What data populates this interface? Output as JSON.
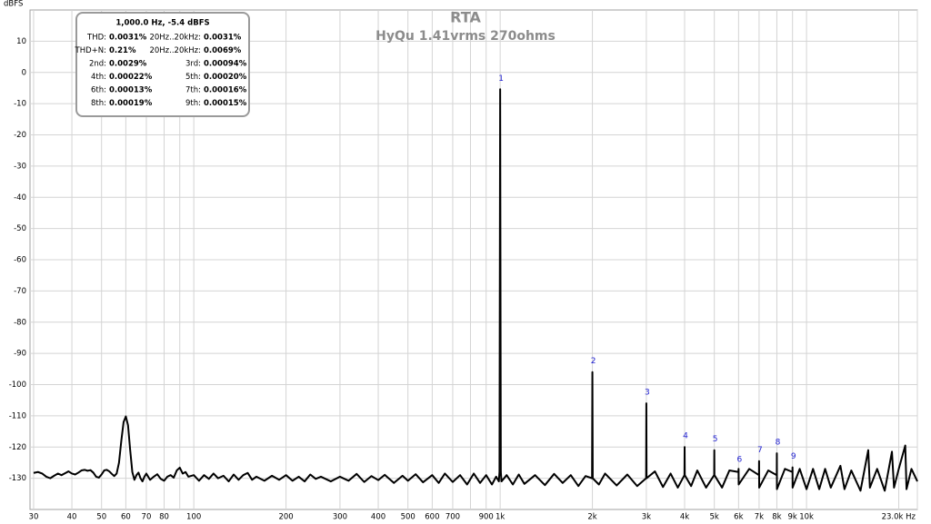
{
  "chart_data": {
    "type": "line",
    "title": "RTA",
    "subtitle": "HyQu 1.41vrms 270ohms",
    "y_label": "dBFS",
    "log_x": true,
    "grid": true,
    "color": "#000000",
    "xlim": [
      29.2,
      23000
    ],
    "ylim": [
      -140,
      20
    ],
    "xticks": [
      30,
      40,
      50,
      60,
      70,
      80,
      100,
      200,
      300,
      400,
      500,
      600,
      700,
      900,
      {
        "value": 1000,
        "label": "1k"
      },
      {
        "value": 2000,
        "label": "2k"
      },
      {
        "value": 3000,
        "label": "3k"
      },
      {
        "value": 4000,
        "label": "4k"
      },
      {
        "value": 5000,
        "label": "5k"
      },
      {
        "value": 6000,
        "label": "6k"
      },
      {
        "value": 7000,
        "label": "7k"
      },
      {
        "value": 8000,
        "label": "8k"
      },
      {
        "value": 9000,
        "label": "9k"
      },
      {
        "value": 10000,
        "label": "10k"
      },
      {
        "value": 23000,
        "label": "23.0k Hz"
      }
    ],
    "xgrid_minor": [
      90,
      800,
      20000
    ],
    "yticks": [
      10,
      0,
      -10,
      -20,
      -30,
      -40,
      -50,
      -60,
      -70,
      -80,
      -90,
      -100,
      -110,
      -120,
      -130
    ],
    "x": [
      30,
      31,
      32,
      33,
      34,
      35,
      36,
      37,
      38,
      39,
      40,
      41,
      42,
      43,
      44,
      45,
      46,
      47,
      48,
      49,
      50,
      51,
      52,
      53,
      54,
      55,
      56,
      57,
      58,
      59,
      60,
      61,
      62,
      63,
      64,
      65,
      66,
      67,
      68,
      69,
      70,
      72,
      74,
      76,
      78,
      80,
      82,
      84,
      86,
      88,
      90,
      92,
      94,
      96,
      100,
      104,
      108,
      112,
      116,
      120,
      125,
      130,
      135,
      140,
      145,
      150,
      155,
      160,
      170,
      180,
      190,
      200,
      210,
      220,
      230,
      240,
      250,
      260,
      280,
      300,
      320,
      340,
      360,
      380,
      400,
      420,
      450,
      480,
      500,
      530,
      560,
      600,
      630,
      660,
      700,
      740,
      780,
      820,
      860,
      900,
      940,
      970,
      990,
      995,
      1000,
      1005,
      1010,
      1050,
      1100,
      1150,
      1200,
      1300,
      1400,
      1500,
      1600,
      1700,
      1800,
      1900,
      1995,
      2000,
      2005,
      2100,
      2200,
      2400,
      2600,
      2800,
      2995,
      3000,
      3005,
      3200,
      3400,
      3600,
      3800,
      3995,
      4000,
      4005,
      4200,
      4400,
      4700,
      4995,
      5000,
      5005,
      5300,
      5600,
      5995,
      6000,
      6005,
      6500,
      6995,
      7000,
      7005,
      7500,
      7995,
      8000,
      8005,
      8500,
      8995,
      9000,
      9005,
      9500,
      10000,
      10500,
      11000,
      11500,
      12000,
      12900,
      13300,
      14000,
      15000,
      15900,
      16100,
      17000,
      18000,
      19000,
      19300,
      20000,
      21000,
      21200,
      22000,
      23000
    ],
    "values": [
      -128.3,
      -128,
      -128.5,
      -129.5,
      -130,
      -129.2,
      -128.5,
      -129,
      -128.4,
      -127.8,
      -128.5,
      -128.8,
      -128.2,
      -127.5,
      -127.3,
      -127.6,
      -127.4,
      -128.2,
      -129.5,
      -129.8,
      -128.8,
      -127.5,
      -127.3,
      -127.8,
      -128.6,
      -129.3,
      -128.5,
      -125,
      -118,
      -112,
      -110.2,
      -113,
      -121,
      -128,
      -130.5,
      -129,
      -128.2,
      -130,
      -131,
      -129.5,
      -128.5,
      -130.5,
      -129.5,
      -128.7,
      -130.2,
      -130.8,
      -129.5,
      -129,
      -129.8,
      -127.5,
      -126.6,
      -128.5,
      -128,
      -129.5,
      -129,
      -130.8,
      -129,
      -130.2,
      -128.5,
      -130,
      -129.2,
      -131,
      -128.8,
      -130.5,
      -129,
      -128.3,
      -130.5,
      -129.5,
      -130.8,
      -129.2,
      -130.5,
      -129,
      -130.8,
      -129.5,
      -131,
      -128.8,
      -130.2,
      -129.5,
      -131,
      -129.5,
      -130.8,
      -128.6,
      -131.2,
      -129.3,
      -130.6,
      -128.9,
      -131.5,
      -129.2,
      -130.8,
      -128.7,
      -131.3,
      -129,
      -131.5,
      -128.5,
      -131.2,
      -129,
      -132,
      -128.5,
      -131.5,
      -129,
      -132,
      -129.5,
      -131,
      -128,
      -5.4,
      -128,
      -131,
      -129,
      -132,
      -128.8,
      -131.8,
      -129,
      -132.2,
      -128.6,
      -131.5,
      -129,
      -132.5,
      -129.3,
      -130,
      -96,
      -130,
      -132,
      -128.5,
      -132.3,
      -128.8,
      -132.5,
      -130,
      -106,
      -130,
      -127.8,
      -132.8,
      -128.5,
      -133,
      -129,
      -120,
      -129,
      -132.5,
      -127.5,
      -133,
      -129,
      -121,
      -129,
      -133,
      -127.5,
      -128,
      -127,
      -132,
      -127,
      -129,
      -124.5,
      -133,
      -127.5,
      -129,
      -122,
      -133.5,
      -127,
      -128,
      -126.5,
      -133,
      -127,
      -133.5,
      -127,
      -133.5,
      -127,
      -133,
      -126,
      -133.5,
      -127.5,
      -134,
      -121,
      -133,
      -127,
      -134,
      -121.5,
      -133,
      -127,
      -119.5,
      -133.5,
      -127,
      -131
    ],
    "markers": [
      {
        "label": "1",
        "x": 1000,
        "y": -2
      },
      {
        "label": "2",
        "x": 2000,
        "y": -92.5
      },
      {
        "label": "3",
        "x": 3000,
        "y": -102.5
      },
      {
        "label": "4",
        "x": 4000,
        "y": -116.5
      },
      {
        "label": "5",
        "x": 5000,
        "y": -117.5
      },
      {
        "label": "6",
        "x": 6000,
        "y": -124
      },
      {
        "label": "7",
        "x": 7000,
        "y": -121
      },
      {
        "label": "8",
        "x": 8000,
        "y": -118.5
      },
      {
        "label": "9",
        "x": 9000,
        "y": -123
      }
    ],
    "info_box": {
      "header": "1,000.0 Hz, -5.4 dBFS",
      "rows": [
        [
          "THD:",
          "0.0031%",
          "20Hz..20kHz:",
          "0.0031%"
        ],
        [
          "THD+N:",
          "0.21%",
          "20Hz..20kHz:",
          "0.0069%"
        ],
        [
          "2nd:",
          "0.0029%",
          "3rd:",
          "0.00094%"
        ],
        [
          "4th:",
          "0.00022%",
          "5th:",
          "0.00020%"
        ],
        [
          "6th:",
          "0.00013%",
          "7th:",
          "0.00016%"
        ],
        [
          "8th:",
          "0.00019%",
          "9th:",
          "0.00015%"
        ]
      ]
    }
  }
}
